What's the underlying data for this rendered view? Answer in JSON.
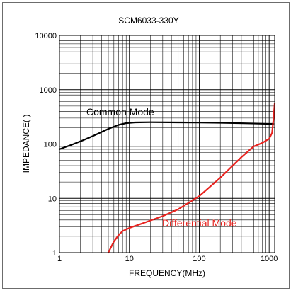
{
  "chart_data": {
    "type": "line",
    "title": "SCM6033-330Y",
    "xlabel": "FREQUENCY(MHz)",
    "ylabel": "IMPEDANCE(  )",
    "x_scale": "log",
    "y_scale": "log",
    "xlim": [
      1,
      1200
    ],
    "ylim": [
      1,
      10000
    ],
    "x_ticks": [
      "1",
      "10",
      "100",
      "1000"
    ],
    "y_ticks": [
      "1",
      "10",
      "100",
      "1000",
      "10000"
    ],
    "grid": true,
    "series": [
      {
        "name": "Common Mode",
        "color": "#000000",
        "x": [
          1,
          1.5,
          2,
          3,
          5,
          7,
          9,
          12,
          20,
          50,
          100,
          200,
          500,
          1000,
          1150
        ],
        "y": [
          80,
          97,
          112,
          140,
          190,
          225,
          242,
          250,
          252,
          250,
          248,
          246,
          240,
          235,
          235
        ]
      },
      {
        "name": "Differential Mode",
        "color": "#e8231f",
        "x": [
          5,
          6,
          7,
          8,
          10,
          13,
          20,
          30,
          50,
          100,
          200,
          400,
          600,
          800,
          1000,
          1100,
          1150,
          1200
        ],
        "y": [
          1,
          1.6,
          2.1,
          2.5,
          2.85,
          3.2,
          3.9,
          4.7,
          6.3,
          11,
          24,
          57,
          90,
          105,
          125,
          160,
          280,
          560
        ]
      }
    ]
  }
}
